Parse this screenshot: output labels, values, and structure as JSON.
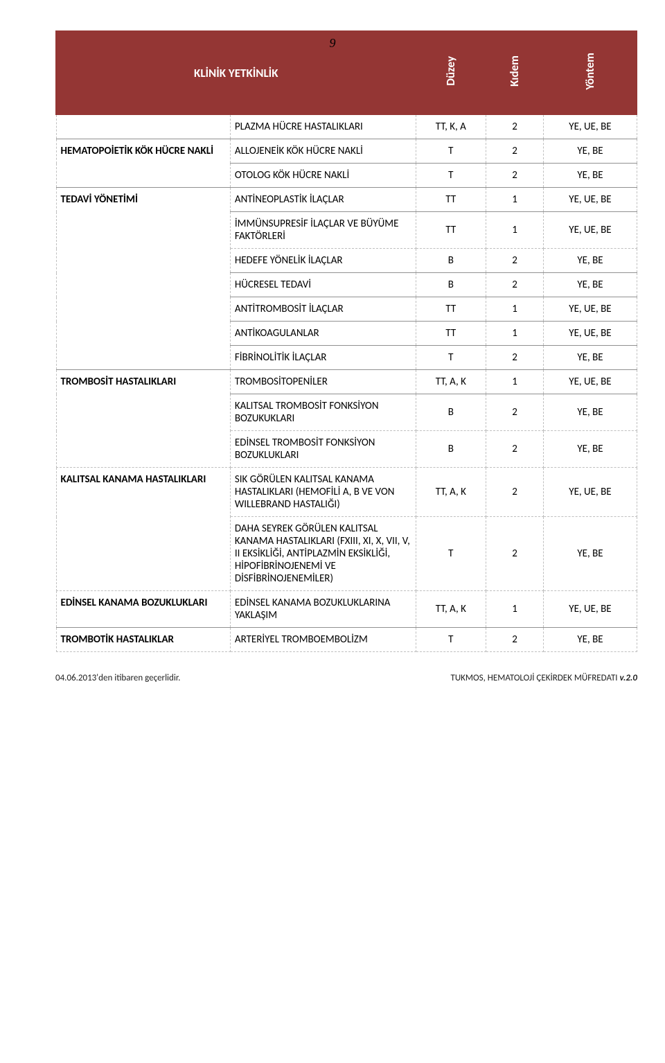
{
  "pageNumber": "9",
  "header": {
    "title": "KLİNİK YETKİNLİK",
    "col3": "Düzey",
    "col4": "Kıdem",
    "col5": "Yöntem"
  },
  "rows": [
    {
      "c1": "",
      "c2": "PLAZMA HÜCRE HASTALIKLARI",
      "c3": "TT, K, A",
      "c4": "2",
      "c5": "YE, UE, BE",
      "sep": true
    },
    {
      "c1": "HEMATOPOİETİK KÖK HÜCRE NAKLİ",
      "c2": "ALLOJENEİK KÖK HÜCRE NAKLİ",
      "c3": "T",
      "c4": "2",
      "c5": "YE, BE",
      "sep": true,
      "rowspan1": 2
    },
    {
      "c2": "OTOLOG KÖK HÜCRE NAKLİ",
      "c3": "T",
      "c4": "2",
      "c5": "YE, BE",
      "sep": true
    },
    {
      "c1": "TEDAVİ YÖNETİMİ",
      "c2": "ANTİNEOPLASTİK İLAÇLAR",
      "c3": "TT",
      "c4": "1",
      "c5": "YE, UE, BE",
      "sep": true,
      "rowspan1": 7
    },
    {
      "c2": "İMMÜNSUPRESİF İLAÇLAR VE BÜYÜME FAKTÖRLERİ",
      "c3": "TT",
      "c4": "1",
      "c5": "YE, UE, BE",
      "sep": true
    },
    {
      "c2": "HEDEFE YÖNELİK İLAÇLAR",
      "c3": "B",
      "c4": "2",
      "c5": "YE, BE"
    },
    {
      "c2": "HÜCRESEL TEDAVİ",
      "c3": "B",
      "c4": "2",
      "c5": "YE, BE",
      "sep": true
    },
    {
      "c2": "ANTİTROMBOSİT İLAÇLAR",
      "c3": "TT",
      "c4": "1",
      "c5": "YE, UE, BE",
      "sep": true
    },
    {
      "c2": "ANTİKOAGULANLAR",
      "c3": "TT",
      "c4": "1",
      "c5": "YE, UE, BE",
      "sep": true
    },
    {
      "c2": "FİBRİNOLİTİK İLAÇLAR",
      "c3": "T",
      "c4": "2",
      "c5": "YE, BE",
      "sep": true
    },
    {
      "c1": "TROMBOSİT HASTALIKLARI",
      "c2": "TROMBOSİTOPENİLER",
      "c3": "TT, A, K",
      "c4": "1",
      "c5": "YE, UE, BE",
      "sep": true,
      "rowspan1": 3
    },
    {
      "c2": "KALITSAL TROMBOSİT FONKSİYON BOZUKUKLARI",
      "c3": "B",
      "c4": "2",
      "c5": "YE, BE",
      "sep": true
    },
    {
      "c2": "EDİNSEL TROMBOSİT FONKSİYON BOZUKLUKLARI",
      "c3": "B",
      "c4": "2",
      "c5": "YE,  BE"
    },
    {
      "c1": "KALITSAL KANAMA HASTALIKLARI",
      "c2": "SIK GÖRÜLEN KALITSAL KANAMA HASTALIKLARI (HEMOFİLİ A, B VE VON WILLEBRAND HASTALIĞI)",
      "c3": "TT, A, K",
      "c4": "2",
      "c5": "YE, UE, BE",
      "rowspan1": 2
    },
    {
      "c2": "DAHA SEYREK GÖRÜLEN KALITSAL KANAMA HASTALIKLARI (FXIII, XI, X, VII, V, II EKSİKLİĞİ, ANTİPLAZMİN EKSİKLİĞİ, HİPOFİBRİNOJENEMİ VE DİSFİBRİNOJENEMİLER)",
      "c3": "T",
      "c4": "2",
      "c5": "YE, BE"
    },
    {
      "c1": "EDİNSEL KANAMA BOZUKLUKLARI",
      "c2": "EDİNSEL KANAMA BOZUKLUKLARINA YAKLAŞIM",
      "c3": "TT, A, K",
      "c4": "1",
      "c5": "YE, UE, BE"
    },
    {
      "c1": "TROMBOTİK HASTALIKLAR",
      "c2": "ARTERİYEL TROMBOEMBOLİZM",
      "c3": "T",
      "c4": "2",
      "c5": "YE, BE",
      "sep": true
    }
  ],
  "footer": {
    "left": "04.06.2013'den itibaren geçerlidir.",
    "rightPrefix": "TUKMOS, HEMATOLOJİ ÇEKİRDEK MÜFREDATI ",
    "rightItalic": "v.2.0"
  },
  "style": {
    "headerBg": "#943634",
    "headerText": "#ffffff",
    "borderDash": "#bfbfbf",
    "sepBorder": "#909090",
    "bodyFontSize": 15,
    "headerFontSize": 17
  }
}
